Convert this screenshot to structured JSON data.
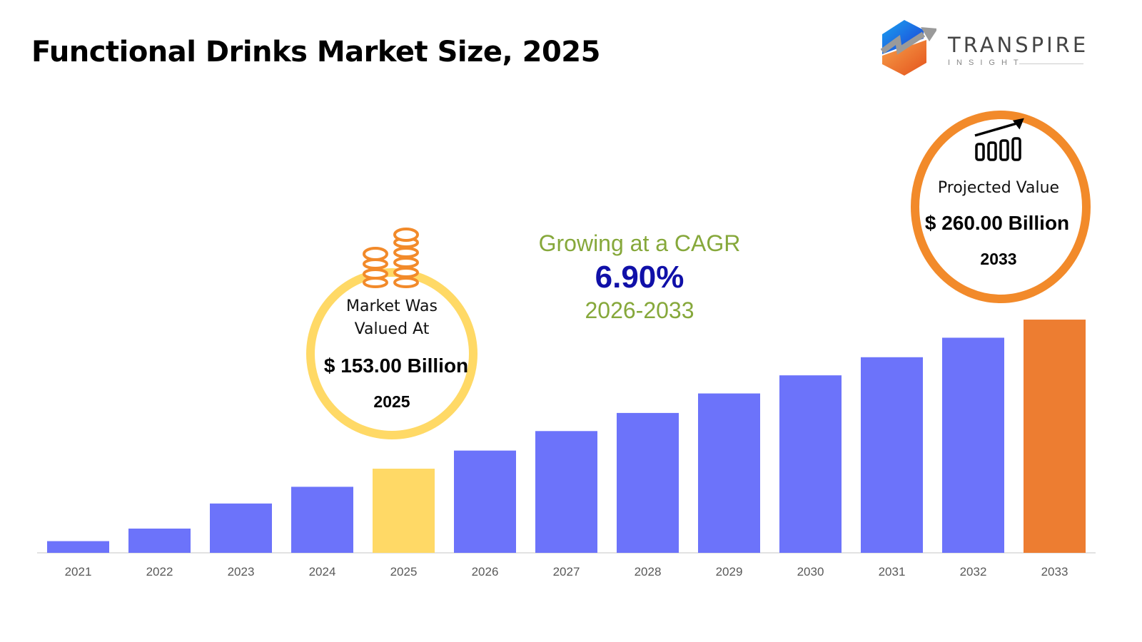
{
  "brand": {
    "name": "TRANSPIRE",
    "tagline": "INSIGHT"
  },
  "callouts": {
    "base": {
      "label_line1": "Market Was",
      "label_line2": "Valued At",
      "value": "$ 153.00 Billion",
      "year": "2025",
      "icon": "coins-stack-icon"
    },
    "projected": {
      "label": "Projected Value",
      "value": "$ 260.00 Billion",
      "year": "2033",
      "icon": "bar-growth-icon"
    },
    "cagr": {
      "prefix": "Growing at a CAGR",
      "rate": "6.90%",
      "period": "2026-2033"
    }
  },
  "colors": {
    "bar": "#6C73FA",
    "base_year": "#FFD966",
    "final_year": "#ED7D31",
    "cagr_text": "#86A83B",
    "cagr_rate": "#1010A8"
  },
  "chart_data": {
    "type": "bar",
    "title": "Functional Drinks Market Size, 2025",
    "xlabel": "",
    "ylabel": "",
    "categories": [
      "2021",
      "2022",
      "2023",
      "2024",
      "2025",
      "2026",
      "2027",
      "2028",
      "2029",
      "2030",
      "2031",
      "2032",
      "2033"
    ],
    "values": [
      101,
      110,
      128,
      140,
      153,
      166,
      180,
      193,
      207,
      220,
      233,
      247,
      260
    ],
    "unit": "USD Billion",
    "grid": false,
    "legend": "none",
    "highlight": {
      "2025": "base_year",
      "2033": "final_year"
    }
  }
}
